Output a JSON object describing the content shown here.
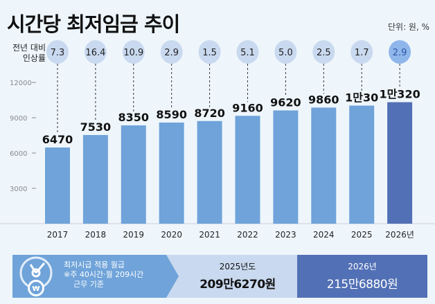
{
  "title": "시간당 최저임금 추이",
  "unit": "단위: 원, %",
  "rate_label": [
    "전년 대비",
    "인상률"
  ],
  "chart_data": {
    "type": "bar",
    "categories": [
      "2017",
      "2018",
      "2019",
      "2020",
      "2021",
      "2022",
      "2023",
      "2024",
      "2025",
      "2026년"
    ],
    "values": [
      6470,
      7530,
      8350,
      8590,
      8720,
      9160,
      9620,
      9860,
      10030,
      10320
    ],
    "data_labels": [
      "6470",
      "7530",
      "8350",
      "8590",
      "8720",
      "9160",
      "9620",
      "9860",
      "1만30",
      "1만320"
    ],
    "growth_rates": [
      "7.3",
      "16.4",
      "10.9",
      "2.9",
      "1.5",
      "5.1",
      "5.0",
      "2.5",
      "1.7",
      "2.9"
    ],
    "yticks": [
      3000,
      6000,
      9000,
      12000
    ],
    "ylim": [
      0,
      12000
    ],
    "colors": {
      "bar": "#6fa3d9",
      "highlight_bar": "#5270b5",
      "circle": "#c9d9ef",
      "highlight_circle": "#8fb6ea"
    }
  },
  "bottom": {
    "label": [
      "최저시급 적용 월급",
      "※주 40시간·월 209시간",
      "근무 기준"
    ],
    "icon": "clock-won-icon",
    "y2025": {
      "year": "2025년도",
      "amount": "209만6270원"
    },
    "y2026": {
      "year": "2026년",
      "amount": "215만6880원"
    }
  }
}
